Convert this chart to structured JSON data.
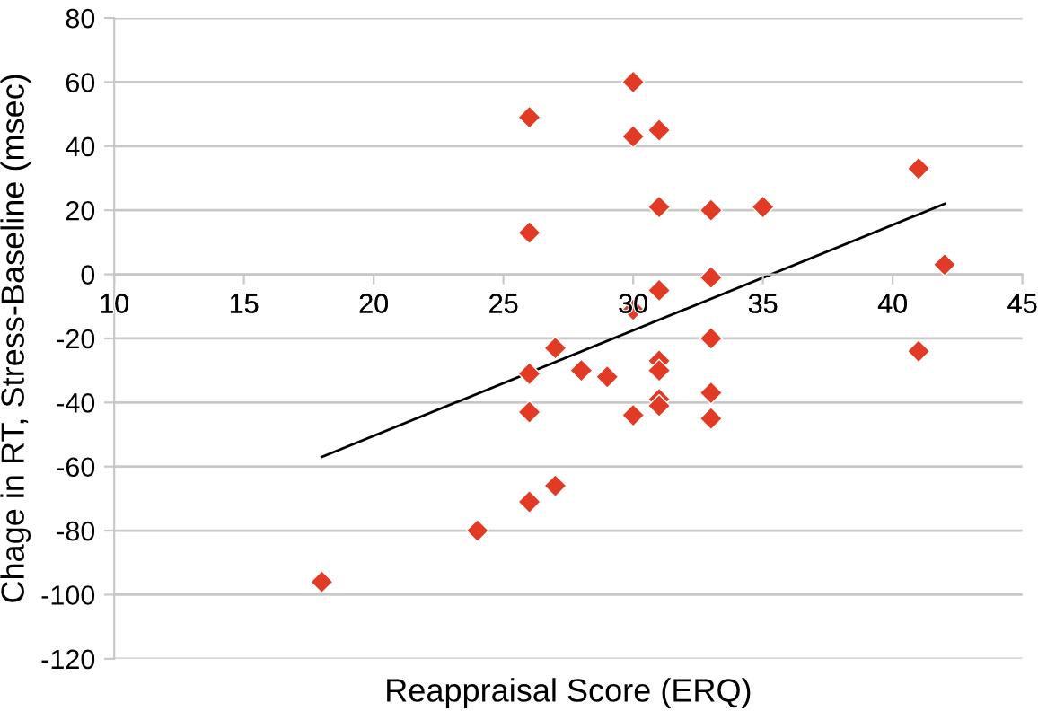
{
  "chart_data": {
    "type": "scatter",
    "xlabel": "Reappraisal Score (ERQ)",
    "ylabel": "Chage in RT, Stress-Baseline (msec)",
    "xlim": [
      10,
      45
    ],
    "xticks": [
      10,
      15,
      20,
      25,
      30,
      35,
      40,
      45
    ],
    "ylim": [
      -120,
      80
    ],
    "yticks": [
      -120,
      -100,
      -80,
      -60,
      -40,
      -20,
      0,
      20,
      40,
      60,
      80
    ],
    "grid": "y",
    "legend": false,
    "series": [
      {
        "marker": "diamond",
        "color": "#e23b25",
        "x": [
          26,
          26,
          30,
          30,
          31,
          31,
          33,
          35,
          41,
          42,
          31,
          33,
          30,
          33,
          27,
          28,
          29,
          31,
          31,
          26,
          26,
          30,
          31,
          31,
          33,
          33,
          41,
          27,
          26,
          24,
          18
        ],
        "values": [
          49,
          13,
          60,
          43,
          45,
          21,
          20,
          21,
          33,
          3,
          -5,
          -1,
          -11,
          -20,
          -23,
          -30,
          -32,
          -27,
          -30,
          -31,
          -43,
          -44,
          -39,
          -41,
          -37,
          -45,
          -24,
          -66,
          -71,
          -80,
          -96
        ]
      },
      {
        "type": "line",
        "marker": "none",
        "line_style": "solid",
        "color": "#000000",
        "x": [
          18,
          42
        ],
        "values": [
          -57,
          22
        ]
      }
    ]
  }
}
